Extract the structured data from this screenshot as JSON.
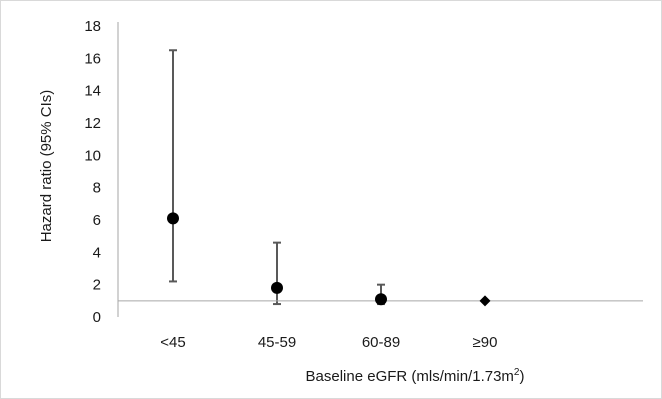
{
  "chart_data": {
    "type": "scatter",
    "categories": [
      "<45",
      "45-59",
      "60-89",
      "≥90"
    ],
    "values": [
      6.1,
      1.8,
      1.1,
      1.0
    ],
    "ci_lower": [
      2.2,
      0.8,
      0.8,
      null
    ],
    "ci_upper": [
      16.5,
      4.6,
      2.0,
      null
    ],
    "markers": [
      "circle",
      "circle",
      "circle",
      "diamond"
    ],
    "reference_line": 1,
    "ylim": [
      0,
      18
    ],
    "yticks": [
      0,
      2,
      4,
      6,
      8,
      10,
      12,
      14,
      16,
      18
    ],
    "xlabel": "Baseline eGFR (mls/min/1.73m",
    "xlabel_superscript": "2",
    "xlabel_suffix": ")",
    "ylabel": "Hazard ratio (95% CIs)",
    "grid": false,
    "colors": {
      "marker": "#000000",
      "errorbar": "#595959",
      "axis": "#a6a6a6"
    }
  }
}
